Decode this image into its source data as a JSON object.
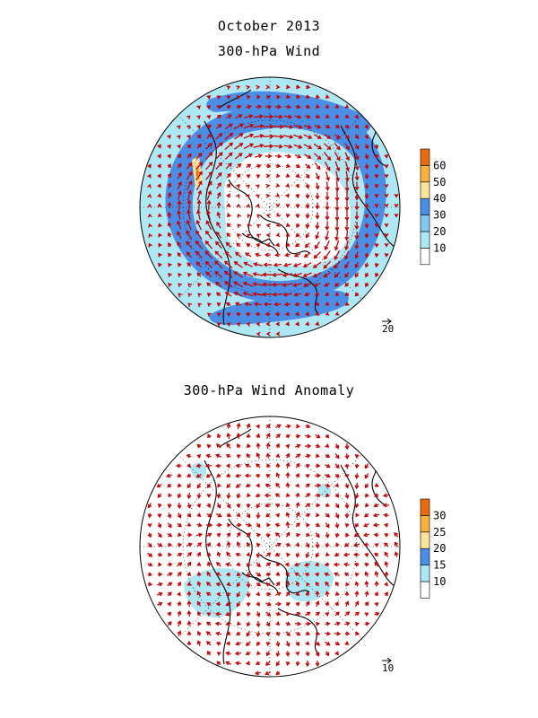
{
  "title_line1": "October 2013",
  "panels": [
    {
      "title": "300-hPa Wind",
      "colorbar": {
        "labels": [
          "10",
          "20",
          "30",
          "40",
          "50",
          "60"
        ],
        "colors": [
          "#ffffff",
          "#aee8f4",
          "#7fc8f0",
          "#4a8ee6",
          "#fbe49a",
          "#f7b23a",
          "#ec6a0d"
        ]
      },
      "reference_vector": "20"
    },
    {
      "title": "300-hPa Wind Anomaly",
      "colorbar": {
        "labels": [
          "10",
          "15",
          "20",
          "25",
          "30"
        ],
        "colors": [
          "#ffffff",
          "#aee8f4",
          "#4a8ee6",
          "#fbe49a",
          "#f7b23a",
          "#ec6a0d"
        ]
      },
      "reference_vector": "10"
    }
  ],
  "colors": {
    "vector": "#cc0000",
    "coast": "#000000"
  }
}
